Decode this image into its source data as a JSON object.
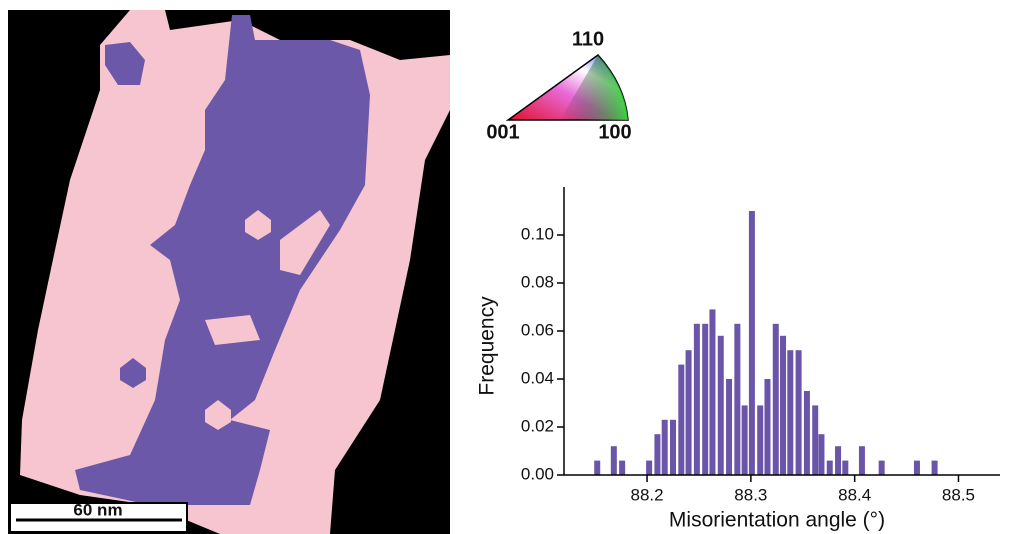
{
  "map": {
    "scale_bar": "60 nm"
  },
  "color_key": {
    "top": "110",
    "left": "001",
    "right": "100"
  },
  "chart_data": {
    "type": "bar",
    "xlabel": "Misorientation angle (°)",
    "ylabel": "Frequency",
    "x": [
      88.152,
      88.168,
      88.176,
      88.202,
      88.21,
      88.217,
      88.225,
      88.233,
      88.24,
      88.248,
      88.256,
      88.263,
      88.271,
      88.279,
      88.287,
      88.294,
      88.301,
      88.309,
      88.316,
      88.324,
      88.331,
      88.338,
      88.346,
      88.354,
      88.362,
      88.368,
      88.376,
      88.384,
      88.391,
      88.407,
      88.426,
      88.46,
      88.477
    ],
    "values": [
      0.006,
      0.012,
      0.006,
      0.006,
      0.017,
      0.023,
      0.023,
      0.046,
      0.052,
      0.063,
      0.063,
      0.069,
      0.058,
      0.04,
      0.063,
      0.029,
      0.11,
      0.029,
      0.04,
      0.063,
      0.058,
      0.052,
      0.052,
      0.035,
      0.029,
      0.017,
      0.006,
      0.012,
      0.006,
      0.012,
      0.006,
      0.006,
      0.006
    ],
    "color": "#6a55a8",
    "xlim": [
      88.12,
      88.54
    ],
    "xticks": [
      88.2,
      88.3,
      88.4,
      88.5
    ],
    "ylim": [
      0,
      0.12
    ],
    "yticks": [
      {
        "value": 0,
        "label": "0.00"
      },
      0.02,
      0.04,
      0.06,
      0.08,
      {
        "value": 0.1,
        "label": "0.10"
      }
    ]
  }
}
